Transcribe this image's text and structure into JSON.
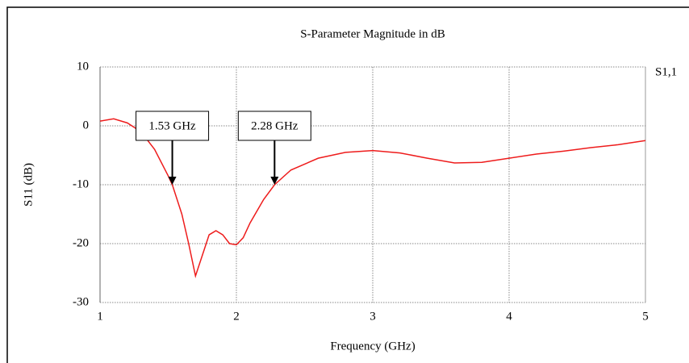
{
  "chart_data": {
    "type": "line",
    "title": "S-Parameter Magnitude in dB",
    "x_label": "Frequency (GHz)",
    "y_label": "S11 (dB)",
    "x": [
      1.0,
      1.1,
      1.2,
      1.3,
      1.4,
      1.5,
      1.53,
      1.6,
      1.65,
      1.7,
      1.75,
      1.8,
      1.85,
      1.9,
      1.95,
      2.0,
      2.05,
      2.1,
      2.2,
      2.28,
      2.4,
      2.6,
      2.8,
      3.0,
      3.2,
      3.4,
      3.6,
      3.8,
      4.0,
      4.2,
      4.4,
      4.6,
      4.8,
      5.0
    ],
    "series": [
      {
        "name": "S1,1",
        "color": "#ee1c1c",
        "values": [
          0.8,
          1.2,
          0.5,
          -1,
          -4,
          -8.5,
          -10,
          -15,
          -20,
          -25.5,
          -22,
          -18.5,
          -17.8,
          -18.5,
          -20,
          -20.2,
          -19,
          -16.5,
          -12.5,
          -10,
          -7.5,
          -5.5,
          -4.5,
          -4.2,
          -4.6,
          -5.5,
          -6.3,
          -6.2,
          -5.5,
          -4.8,
          -4.3,
          -3.7,
          -3.2,
          -2.5
        ]
      }
    ],
    "annotations": [
      {
        "text": "1.53 GHz",
        "x": 1.53,
        "y": -10
      },
      {
        "text": "2.28 GHz",
        "x": 2.28,
        "y": -10
      }
    ],
    "xlim": [
      1,
      5
    ],
    "xticks": [
      1,
      2,
      3,
      4,
      5
    ],
    "ylim": [
      -30,
      10
    ],
    "yticks": [
      -30,
      -20,
      -10,
      0,
      10
    ],
    "grid": true,
    "legend": "top-right"
  }
}
